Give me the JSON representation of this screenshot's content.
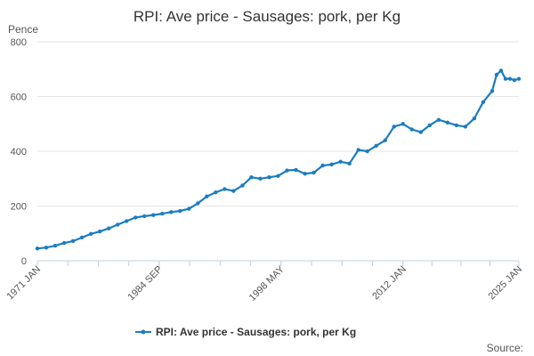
{
  "chart_data": {
    "type": "line",
    "title": "RPI: Ave price - Sausages: pork, per Kg",
    "ylabel": "Pence",
    "xlabel": "",
    "ylim": [
      0,
      800
    ],
    "y_ticks": [
      "0",
      "200",
      "400",
      "600",
      "800"
    ],
    "x_range": [
      "1971 JAN",
      "2025 JAN"
    ],
    "x_tick_labels": [
      "1971 JAN",
      "1984 SEP",
      "1998 MAY",
      "2012 JAN",
      "2025 JAN"
    ],
    "grid": true,
    "legend_position": "bottom",
    "series": [
      {
        "name": "RPI: Ave price - Sausages: pork, per Kg",
        "color": "#1b7dc1",
        "marker": "circle",
        "x": [
          "1971-01",
          "1972-01",
          "1973-01",
          "1974-01",
          "1975-01",
          "1976-01",
          "1977-01",
          "1978-01",
          "1979-01",
          "1980-01",
          "1981-01",
          "1982-01",
          "1983-01",
          "1984-01",
          "1985-01",
          "1986-01",
          "1987-01",
          "1988-01",
          "1989-01",
          "1990-01",
          "1991-01",
          "1992-01",
          "1993-01",
          "1994-01",
          "1995-01",
          "1996-01",
          "1997-01",
          "1998-01",
          "1999-01",
          "2000-01",
          "2001-01",
          "2002-01",
          "2003-01",
          "2004-01",
          "2005-01",
          "2006-01",
          "2007-01",
          "2008-01",
          "2009-01",
          "2010-01",
          "2011-01",
          "2012-01",
          "2013-01",
          "2014-01",
          "2015-01",
          "2016-01",
          "2017-01",
          "2018-01",
          "2019-01",
          "2020-01",
          "2021-01",
          "2022-01",
          "2022-07",
          "2023-01",
          "2023-07",
          "2024-01",
          "2024-07",
          "2025-01"
        ],
        "y": [
          45,
          48,
          55,
          65,
          72,
          85,
          98,
          107,
          118,
          132,
          145,
          158,
          163,
          167,
          172,
          178,
          182,
          190,
          210,
          235,
          250,
          262,
          255,
          275,
          305,
          300,
          305,
          310,
          330,
          332,
          318,
          322,
          348,
          352,
          362,
          355,
          405,
          400,
          420,
          440,
          490,
          500,
          480,
          470,
          495,
          515,
          505,
          495,
          490,
          520,
          580,
          620,
          680,
          695,
          665,
          665,
          660,
          665
        ]
      }
    ],
    "source_label": "Source:"
  }
}
